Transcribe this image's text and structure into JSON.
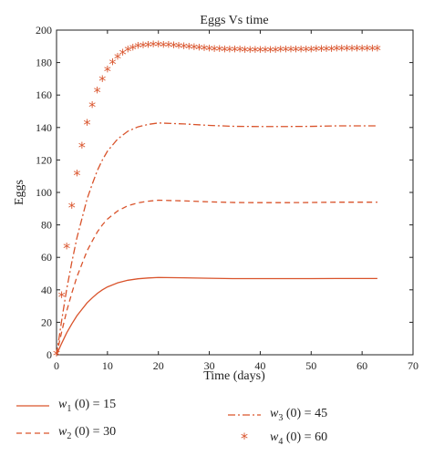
{
  "chart_data": {
    "type": "line",
    "title": "Eggs Vs time",
    "xlabel": "Time (days)",
    "ylabel": "Eggs",
    "xlim": [
      0,
      70
    ],
    "ylim": [
      0,
      200
    ],
    "xticks": [
      0,
      10,
      20,
      30,
      40,
      50,
      60,
      70
    ],
    "yticks": [
      0,
      20,
      40,
      60,
      80,
      100,
      120,
      140,
      160,
      180,
      200
    ],
    "grid": false,
    "legend_position": "bottom",
    "series": [
      {
        "name": "w1 (0) = 15",
        "label": {
          "var": "w",
          "sub": "1",
          "rest": " (0) = 15"
        },
        "style": "solid",
        "color": "#d9532b",
        "x": [
          0,
          1,
          2,
          3,
          4,
          5,
          6,
          7,
          8,
          9,
          10,
          12,
          14,
          16,
          18,
          20,
          25,
          30,
          35,
          40,
          45,
          50,
          55,
          60,
          63
        ],
        "y": [
          0,
          7,
          13.5,
          19,
          24,
          28,
          32,
          35,
          37.8,
          40,
          41.8,
          44.3,
          45.9,
          46.8,
          47.3,
          47.6,
          47.4,
          47.1,
          46.9,
          46.9,
          46.9,
          46.9,
          47,
          47,
          47
        ]
      },
      {
        "name": "w2 (0) = 30",
        "label": {
          "var": "w",
          "sub": "2",
          "rest": " (0) = 30"
        },
        "style": "dashed",
        "color": "#d9532b",
        "x": [
          0,
          1,
          2,
          3,
          4,
          5,
          6,
          7,
          8,
          9,
          10,
          12,
          14,
          16,
          18,
          20,
          25,
          30,
          35,
          40,
          45,
          50,
          55,
          60,
          63
        ],
        "y": [
          0,
          14,
          27,
          38,
          48,
          56,
          64,
          70,
          75.6,
          80,
          83.6,
          88.6,
          91.8,
          93.6,
          94.6,
          95.2,
          94.8,
          94.2,
          93.8,
          93.7,
          93.7,
          93.8,
          94,
          94,
          94
        ]
      },
      {
        "name": "w3 (0) = 45",
        "label": {
          "var": "w",
          "sub": "3",
          "rest": " (0) = 45"
        },
        "style": "dashdot",
        "color": "#d9532b",
        "x": [
          0,
          1,
          2,
          3,
          4,
          5,
          6,
          7,
          8,
          9,
          10,
          12,
          14,
          16,
          18,
          20,
          25,
          30,
          35,
          40,
          45,
          50,
          55,
          60,
          63
        ],
        "y": [
          0,
          21,
          40.5,
          57,
          72,
          84,
          96,
          105,
          113.4,
          120,
          125.4,
          132.9,
          137.7,
          140.4,
          141.9,
          142.8,
          142.2,
          141.3,
          140.7,
          140.6,
          140.6,
          140.7,
          141,
          141,
          141
        ]
      },
      {
        "name": "w4 (0) = 60",
        "label": {
          "var": "w",
          "sub": "4",
          "rest": " (0) = 60"
        },
        "style": "asterisk",
        "color": "#d9532b",
        "x": [
          0,
          1,
          2,
          3,
          4,
          5,
          6,
          7,
          8,
          9,
          10,
          11,
          12,
          13,
          14,
          15,
          16,
          17,
          18,
          19,
          20,
          21,
          22,
          23,
          24,
          25,
          26,
          27,
          28,
          29,
          30,
          31,
          32,
          33,
          34,
          35,
          36,
          37,
          38,
          39,
          40,
          41,
          42,
          43,
          44,
          45,
          46,
          47,
          48,
          49,
          50,
          51,
          52,
          53,
          54,
          55,
          56,
          57,
          58,
          59,
          60,
          61,
          62,
          63
        ],
        "y": [
          0,
          36,
          66,
          91,
          111,
          128,
          142,
          153,
          162,
          169,
          175,
          179.5,
          183,
          185.5,
          187.3,
          188.6,
          189.5,
          190,
          190.3,
          190.4,
          190.4,
          190.3,
          190.1,
          189.9,
          189.6,
          189.3,
          189,
          188.7,
          188.4,
          188.1,
          187.9,
          187.7,
          187.6,
          187.5,
          187.4,
          187.3,
          187.3,
          187.2,
          187.2,
          187.2,
          187.2,
          187.2,
          187.2,
          187.2,
          187.3,
          187.3,
          187.3,
          187.4,
          187.4,
          187.5,
          187.5,
          187.6,
          187.6,
          187.7,
          187.7,
          187.8,
          187.8,
          187.8,
          187.9,
          187.9,
          187.9,
          188,
          188,
          188
        ]
      }
    ]
  }
}
